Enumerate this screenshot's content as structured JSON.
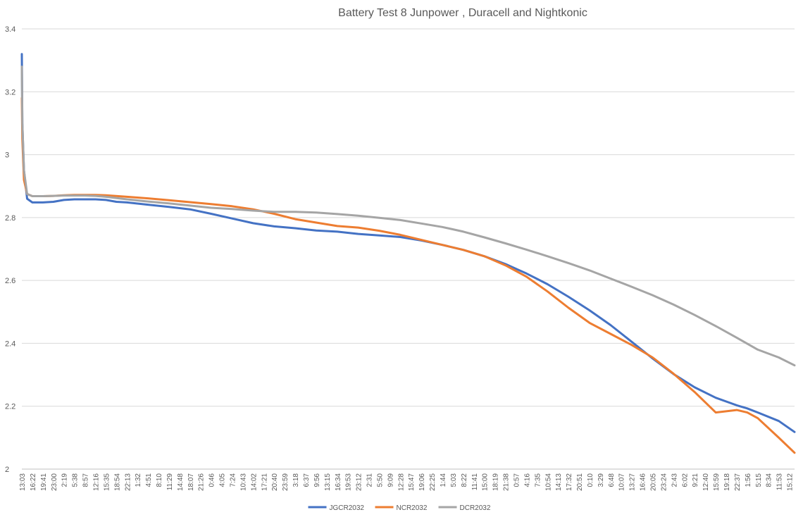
{
  "chart_data": {
    "type": "line",
    "title": "Battery Test 8 Junpower , Duracell and Nightkonic",
    "xlabel": "",
    "ylabel": "",
    "ylim": [
      2,
      3.4
    ],
    "y_ticks": [
      "2",
      "2.2",
      "2.4",
      "2.6",
      "2.8",
      "3",
      "3.2",
      "3.4"
    ],
    "grid": true,
    "legend_position": "bottom",
    "x_tick_labels": [
      "13:03",
      "16:22",
      "19:41",
      "23:00",
      "2:19",
      "5:38",
      "8:57",
      "12:16",
      "15:35",
      "18:54",
      "22:13",
      "1:32",
      "4:51",
      "8:10",
      "11:29",
      "14:48",
      "18:07",
      "21:26",
      "0:46",
      "4:05",
      "7:24",
      "10:43",
      "14:02",
      "17:21",
      "20:40",
      "23:59",
      "3:18",
      "6:37",
      "9:56",
      "13:15",
      "16:34",
      "19:53",
      "23:12",
      "2:31",
      "5:50",
      "9:09",
      "12:28",
      "15:47",
      "19:06",
      "22:25",
      "1:44",
      "5:03",
      "8:22",
      "11:41",
      "15:00",
      "18:19",
      "21:38",
      "0:57",
      "4:16",
      "7:35",
      "10:54",
      "14:13",
      "17:32",
      "20:51",
      "0:10",
      "3:29",
      "6:48",
      "10:07",
      "13:27",
      "16:46",
      "20:05",
      "23:24",
      "2:43",
      "6:02",
      "9:21",
      "12:40",
      "15:59",
      "19:18",
      "22:37",
      "1:56",
      "5:15",
      "8:34",
      "11:53",
      "15:12"
    ],
    "x_end_index": 73.5,
    "series": [
      {
        "name": "JGCR2032",
        "color": "#4472c4",
        "x": [
          0,
          0.05,
          0.2,
          0.5,
          1,
          2,
          3,
          4,
          5,
          6,
          7,
          8,
          9,
          10,
          12,
          14,
          16,
          18,
          20,
          22,
          24,
          26,
          28,
          30,
          32,
          34,
          36,
          38,
          40,
          42,
          44,
          46,
          48,
          50,
          52,
          54,
          56,
          58,
          60,
          62,
          64,
          66,
          68,
          69,
          70,
          72,
          73.5
        ],
        "y": [
          3.32,
          3.1,
          2.95,
          2.86,
          2.848,
          2.848,
          2.85,
          2.856,
          2.858,
          2.858,
          2.858,
          2.856,
          2.85,
          2.848,
          2.841,
          2.834,
          2.826,
          2.812,
          2.797,
          2.782,
          2.772,
          2.766,
          2.759,
          2.755,
          2.748,
          2.743,
          2.738,
          2.727,
          2.713,
          2.697,
          2.677,
          2.652,
          2.622,
          2.588,
          2.548,
          2.505,
          2.458,
          2.405,
          2.352,
          2.302,
          2.26,
          2.227,
          2.203,
          2.193,
          2.18,
          2.153,
          2.118
        ]
      },
      {
        "name": "NCR2032",
        "color": "#ed7d31",
        "x": [
          0,
          0.05,
          0.2,
          0.5,
          1,
          2,
          3,
          4,
          5,
          6,
          7,
          8,
          10,
          12,
          14,
          16,
          18,
          20,
          22,
          24,
          26,
          28,
          30,
          32,
          34,
          36,
          38,
          40,
          42,
          44,
          46,
          48,
          50,
          52,
          54,
          56,
          58,
          60,
          62,
          64,
          66,
          68,
          69,
          70,
          72,
          73.5
        ],
        "y": [
          3.18,
          3.05,
          2.92,
          2.875,
          2.868,
          2.868,
          2.869,
          2.871,
          2.872,
          2.872,
          2.872,
          2.871,
          2.866,
          2.861,
          2.855,
          2.849,
          2.843,
          2.836,
          2.826,
          2.812,
          2.795,
          2.784,
          2.773,
          2.768,
          2.758,
          2.745,
          2.729,
          2.713,
          2.697,
          2.677,
          2.648,
          2.612,
          2.565,
          2.513,
          2.465,
          2.43,
          2.395,
          2.355,
          2.303,
          2.245,
          2.18,
          2.188,
          2.18,
          2.162,
          2.1,
          2.052
        ]
      },
      {
        "name": "DCR2032",
        "color": "#a5a5a5",
        "x": [
          0,
          0.05,
          0.2,
          0.5,
          1,
          2,
          3,
          4,
          5,
          6,
          7,
          8,
          10,
          12,
          14,
          16,
          18,
          20,
          22,
          24,
          26,
          28,
          30,
          32,
          34,
          36,
          38,
          40,
          42,
          44,
          46,
          48,
          50,
          52,
          54,
          56,
          58,
          60,
          62,
          64,
          66,
          68,
          70,
          72,
          73.5
        ],
        "y": [
          3.28,
          3.1,
          2.95,
          2.875,
          2.868,
          2.868,
          2.869,
          2.87,
          2.87,
          2.87,
          2.869,
          2.866,
          2.858,
          2.851,
          2.845,
          2.838,
          2.831,
          2.827,
          2.822,
          2.818,
          2.818,
          2.816,
          2.811,
          2.806,
          2.799,
          2.792,
          2.781,
          2.77,
          2.755,
          2.737,
          2.718,
          2.698,
          2.677,
          2.655,
          2.632,
          2.606,
          2.58,
          2.553,
          2.523,
          2.49,
          2.455,
          2.418,
          2.38,
          2.355,
          2.33
        ]
      }
    ]
  }
}
